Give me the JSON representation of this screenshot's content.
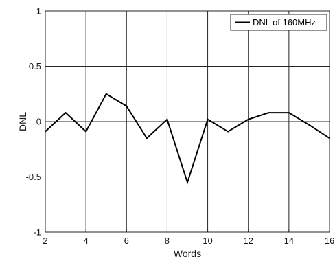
{
  "chart_data": {
    "type": "line",
    "title": "",
    "xlabel": "Words",
    "ylabel": "DNL",
    "xlim": [
      2,
      16
    ],
    "ylim": [
      -1,
      1
    ],
    "grid": true,
    "legend_position": "top-right",
    "x_ticks": [
      "2",
      "4",
      "6",
      "8",
      "10",
      "12",
      "14",
      "16"
    ],
    "y_ticks": [
      "1",
      "0.5",
      "0",
      "-0.5",
      "-1"
    ],
    "series": [
      {
        "name": "DNL of 160MHz",
        "color": "#000000",
        "x": [
          2,
          3,
          4,
          5,
          6,
          7,
          8,
          9,
          10,
          11,
          12,
          13,
          14,
          15,
          16
        ],
        "y": [
          -0.09,
          0.08,
          -0.09,
          0.25,
          0.14,
          -0.15,
          0.02,
          -0.55,
          0.02,
          -0.09,
          0.02,
          0.08,
          0.08,
          -0.03,
          -0.15
        ]
      }
    ]
  }
}
